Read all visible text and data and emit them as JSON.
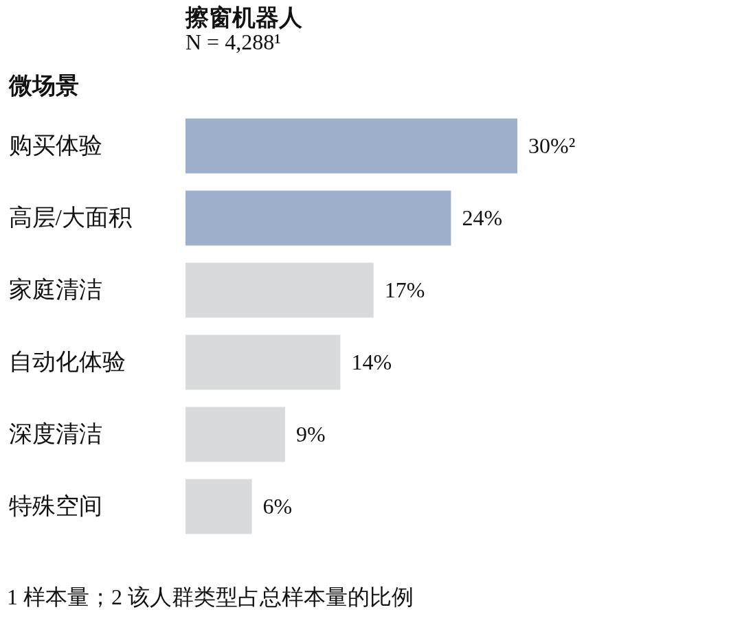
{
  "chart_data": {
    "type": "bar",
    "orientation": "horizontal",
    "title": "擦窗机器人",
    "subtitle": "N = 4,288¹",
    "ylabel": "微场景",
    "categories": [
      "购买体验",
      "高层/大面积",
      "家庭清洁",
      "自动化体验",
      "深度清洁",
      "特殊空间"
    ],
    "values": [
      30,
      24,
      17,
      14,
      9,
      6
    ],
    "value_labels": [
      "30%²",
      "24%",
      "17%",
      "14%",
      "9%",
      "6%"
    ],
    "colors": [
      "#9eb0cc",
      "#9eb0cc",
      "#d9dadb",
      "#d9dadb",
      "#d9dadb",
      "#d9dadb"
    ],
    "annotations": [
      "1 样本量；2 该人群类型占总样本量的比例"
    ],
    "grid": false
  }
}
